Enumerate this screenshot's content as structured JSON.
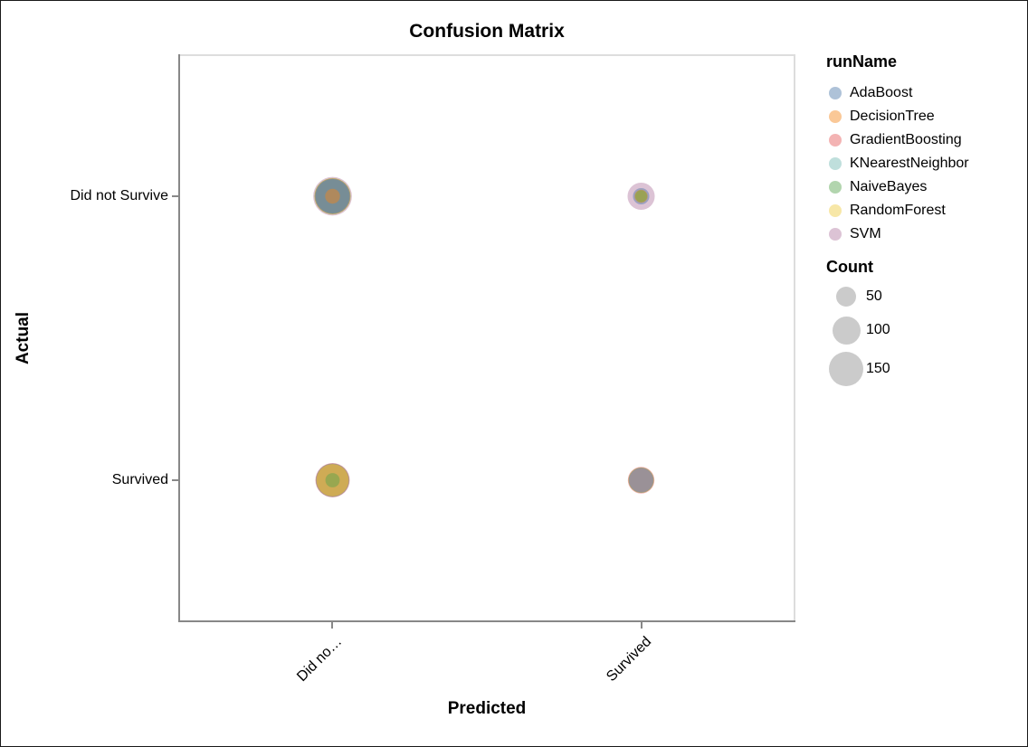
{
  "chart_data": {
    "type": "scatter",
    "subtype": "bubble-confusion-matrix",
    "title": "Confusion Matrix",
    "xlabel": "Predicted",
    "ylabel": "Actual",
    "x_categories": [
      "Did not Survive",
      "Survived"
    ],
    "y_categories": [
      "Did not Survive",
      "Survived"
    ],
    "x_tick_labels": [
      "Did no…",
      "Survived"
    ],
    "y_tick_labels": [
      "Did not Survive",
      "Survived"
    ],
    "grid": false,
    "legend_position": "right",
    "marker_opacity": 0.45,
    "axis_line_color": "#888888",
    "frame_line_color": "#dddddd",
    "color_legend": {
      "title": "runName",
      "entries": [
        {
          "name": "AdaBoost",
          "color": "#4c78a8"
        },
        {
          "name": "DecisionTree",
          "color": "#f58518"
        },
        {
          "name": "GradientBoosting",
          "color": "#e45756"
        },
        {
          "name": "KNearestNeighbor",
          "color": "#72b7b2"
        },
        {
          "name": "NaiveBayes",
          "color": "#54a24b"
        },
        {
          "name": "RandomForest",
          "color": "#eeca3b"
        },
        {
          "name": "SVM",
          "color": "#b279a2"
        }
      ]
    },
    "size_legend": {
      "title": "Count",
      "values": [
        50,
        100,
        150
      ],
      "swatch_color": "#cbcbcb"
    },
    "points": [
      {
        "run": "AdaBoost",
        "predicted": "Did not Survive",
        "actual": "Did not Survive",
        "count": 150
      },
      {
        "run": "DecisionTree",
        "predicted": "Did not Survive",
        "actual": "Did not Survive",
        "count": 28
      },
      {
        "run": "GradientBoosting",
        "predicted": "Did not Survive",
        "actual": "Did not Survive",
        "count": 160
      },
      {
        "run": "KNearestNeighbor",
        "predicted": "Did not Survive",
        "actual": "Did not Survive",
        "count": 155
      },
      {
        "run": "NaiveBayes",
        "predicted": "Did not Survive",
        "actual": "Did not Survive",
        "count": 165
      },
      {
        "run": "RandomForest",
        "predicted": "Did not Survive",
        "actual": "Did not Survive",
        "count": 170
      },
      {
        "run": "SVM",
        "predicted": "Did not Survive",
        "actual": "Did not Survive",
        "count": 190
      },
      {
        "run": "AdaBoost",
        "predicted": "Survived",
        "actual": "Did not Survive",
        "count": 34
      },
      {
        "run": "DecisionTree",
        "predicted": "Survived",
        "actual": "Did not Survive",
        "count": 22
      },
      {
        "run": "GradientBoosting",
        "predicted": "Survived",
        "actual": "Did not Survive",
        "count": 20
      },
      {
        "run": "KNearestNeighbor",
        "predicted": "Survived",
        "actual": "Did not Survive",
        "count": 21
      },
      {
        "run": "NaiveBayes",
        "predicted": "Survived",
        "actual": "Did not Survive",
        "count": 18
      },
      {
        "run": "RandomForest",
        "predicted": "Survived",
        "actual": "Did not Survive",
        "count": 19
      },
      {
        "run": "SVM",
        "predicted": "Survived",
        "actual": "Did not Survive",
        "count": 94
      },
      {
        "run": "AdaBoost",
        "predicted": "Did not Survive",
        "actual": "Survived",
        "count": 140
      },
      {
        "run": "DecisionTree",
        "predicted": "Did not Survive",
        "actual": "Survived",
        "count": 135
      },
      {
        "run": "GradientBoosting",
        "predicted": "Did not Survive",
        "actual": "Survived",
        "count": 150
      },
      {
        "run": "KNearestNeighbor",
        "predicted": "Did not Survive",
        "actual": "Survived",
        "count": 138
      },
      {
        "run": "NaiveBayes",
        "predicted": "Did not Survive",
        "actual": "Survived",
        "count": 26
      },
      {
        "run": "RandomForest",
        "predicted": "Did not Survive",
        "actual": "Survived",
        "count": 132
      },
      {
        "run": "SVM",
        "predicted": "Did not Survive",
        "actual": "Survived",
        "count": 145
      },
      {
        "run": "AdaBoost",
        "predicted": "Survived",
        "actual": "Survived",
        "count": 78
      },
      {
        "run": "DecisionTree",
        "predicted": "Survived",
        "actual": "Survived",
        "count": 80
      },
      {
        "run": "GradientBoosting",
        "predicted": "Survived",
        "actual": "Survived",
        "count": 90
      },
      {
        "run": "KNearestNeighbor",
        "predicted": "Survived",
        "actual": "Survived",
        "count": 76
      },
      {
        "run": "NaiveBayes",
        "predicted": "Survived",
        "actual": "Survived",
        "count": 82
      },
      {
        "run": "RandomForest",
        "predicted": "Survived",
        "actual": "Survived",
        "count": 79
      },
      {
        "run": "SVM",
        "predicted": "Survived",
        "actual": "Survived",
        "count": 74
      }
    ]
  }
}
